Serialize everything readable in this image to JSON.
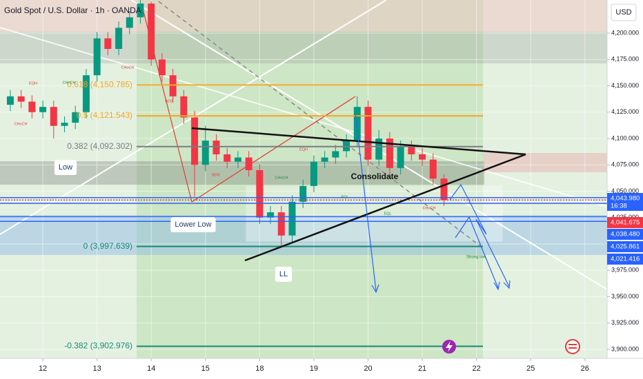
{
  "chart_data": {
    "type": "candlestick",
    "title": "Gold Spot / U.S. Dollar · 1h · OANDA",
    "currency": "USD",
    "xlim": [
      -0.79,
      10.41
    ],
    "xticks": [
      {
        "value": 0,
        "label": "12"
      },
      {
        "value": 1,
        "label": "13"
      },
      {
        "value": 2,
        "label": "14"
      },
      {
        "value": 3,
        "label": "15"
      },
      {
        "value": 4,
        "label": "18"
      },
      {
        "value": 5,
        "label": "19"
      },
      {
        "value": 6,
        "label": "20"
      },
      {
        "value": 7,
        "label": "21"
      },
      {
        "value": 8,
        "label": "22"
      },
      {
        "value": 9,
        "label": "25"
      },
      {
        "value": 10,
        "label": "26"
      }
    ],
    "ylim": [
      3891.5,
      4231.4
    ],
    "yticks": [
      {
        "value": 3900,
        "label": "3,900.000"
      },
      {
        "value": 3925,
        "label": "3,925.000"
      },
      {
        "value": 3950,
        "label": "3,950.000"
      },
      {
        "value": 3975,
        "label": "3,975.000"
      },
      {
        "value": 4000,
        "label": "4,000.000"
      },
      {
        "value": 4025,
        "label": "4,025.000"
      },
      {
        "value": 4050,
        "label": "4,050.000"
      },
      {
        "value": 4075,
        "label": "4,075.000"
      },
      {
        "value": 4100,
        "label": "4,100.000"
      },
      {
        "value": 4125,
        "label": "4,125.000"
      },
      {
        "value": 4150,
        "label": "4,150.000"
      },
      {
        "value": 4175,
        "label": "4,175.000"
      },
      {
        "value": 4200,
        "label": "4,200.000"
      }
    ],
    "grid": true,
    "up_color": "#089981",
    "down_color": "#f23645",
    "x": [
      -0.6,
      -0.4,
      -0.2,
      0,
      0.2,
      0.4,
      0.6,
      0.8,
      1,
      1.2,
      1.4,
      1.6,
      1.8,
      2,
      2.2,
      2.4,
      2.6,
      2.8,
      3,
      3.2,
      3.4,
      3.6,
      3.8,
      4,
      4.2,
      4.4,
      4.6,
      4.8,
      5,
      5.2,
      5.4,
      5.6,
      5.8,
      6,
      6.2,
      6.4,
      6.6,
      6.8,
      7,
      7.2,
      7.4
    ],
    "open": [
      4132,
      4140,
      4135,
      4125,
      4130,
      4112,
      4115,
      4125,
      4160,
      4195,
      4185,
      4205,
      4215,
      4228,
      4175,
      4160,
      4140,
      4120,
      4075,
      4098,
      4085,
      4078,
      4082,
      4070,
      4025,
      4030,
      4008,
      4040,
      4055,
      4078,
      4082,
      4088,
      4098,
      4130,
      4080,
      4100,
      4072,
      4092,
      4085,
      4080,
      4062
    ],
    "high": [
      4146,
      4146,
      4141,
      4136,
      4136,
      4121,
      4131,
      4166,
      4201,
      4201,
      4211,
      4221,
      4232,
      4230,
      4181,
      4166,
      4146,
      4126,
      4112,
      4104,
      4091,
      4088,
      4088,
      4076,
      4036,
      4036,
      4046,
      4061,
      4084,
      4088,
      4094,
      4104,
      4140,
      4136,
      4108,
      4106,
      4098,
      4098,
      4091,
      4086,
      4066
    ],
    "low": [
      4126,
      4129,
      4119,
      4119,
      4100,
      4106,
      4109,
      4119,
      4154,
      4179,
      4179,
      4199,
      4209,
      4169,
      4154,
      4134,
      4114,
      4045,
      4069,
      4079,
      4072,
      4072,
      4064,
      4019,
      4019,
      3998,
      4002,
      4034,
      4049,
      4072,
      4076,
      4082,
      4092,
      4074,
      4074,
      4066,
      4066,
      4079,
      4074,
      4056,
      4036
    ],
    "close": [
      4140,
      4135,
      4125,
      4130,
      4112,
      4115,
      4125,
      4160,
      4195,
      4185,
      4205,
      4215,
      4228,
      4175,
      4160,
      4140,
      4120,
      4075,
      4098,
      4085,
      4078,
      4082,
      4070,
      4025,
      4030,
      4008,
      4040,
      4055,
      4078,
      4082,
      4088,
      4098,
      4130,
      4080,
      4100,
      4072,
      4092,
      4085,
      4080,
      4062,
      4041.675
    ],
    "fib_levels": [
      {
        "label": "0.618 (4,150.785)",
        "value": 4150.785,
        "color": "#f5a623"
      },
      {
        "label": "0.5 (4,121.543)",
        "value": 4121.543,
        "color": "#f5a623"
      },
      {
        "label": "0.382 (4,092.302)",
        "value": 4092.302,
        "color": "#787b86"
      },
      {
        "label": "0 (3,997.639)",
        "value": 3997.639,
        "color": "#1b8a7a"
      },
      {
        "label": "-0.382 (3,902.976)",
        "value": 3902.976,
        "color": "#1b8a7a"
      }
    ],
    "price_labels": [
      {
        "label": "4,043.980",
        "value": 4043.98,
        "color": "#2962ff",
        "time": "16:38"
      },
      {
        "label": "4,041.675",
        "value": 4041.675,
        "color": "#f23645"
      },
      {
        "label": "4,038.480",
        "value": 4038.48,
        "color": "#2962ff"
      },
      {
        "label": "4,025.861",
        "value": 4025.861,
        "color": "#2962ff"
      },
      {
        "label": "4,021.416",
        "value": 4021.416,
        "color": "#2962ff"
      }
    ],
    "annotations": [
      "Low",
      "Lower Low",
      "LL",
      "Consolidate",
      "Strong low",
      "EQH",
      "CHoCH",
      "CHoCH",
      "CHoCH",
      "BOS",
      "EQH",
      "CHoCH",
      "EQL",
      "EQL",
      "CHoCH",
      "BOS"
    ]
  }
}
